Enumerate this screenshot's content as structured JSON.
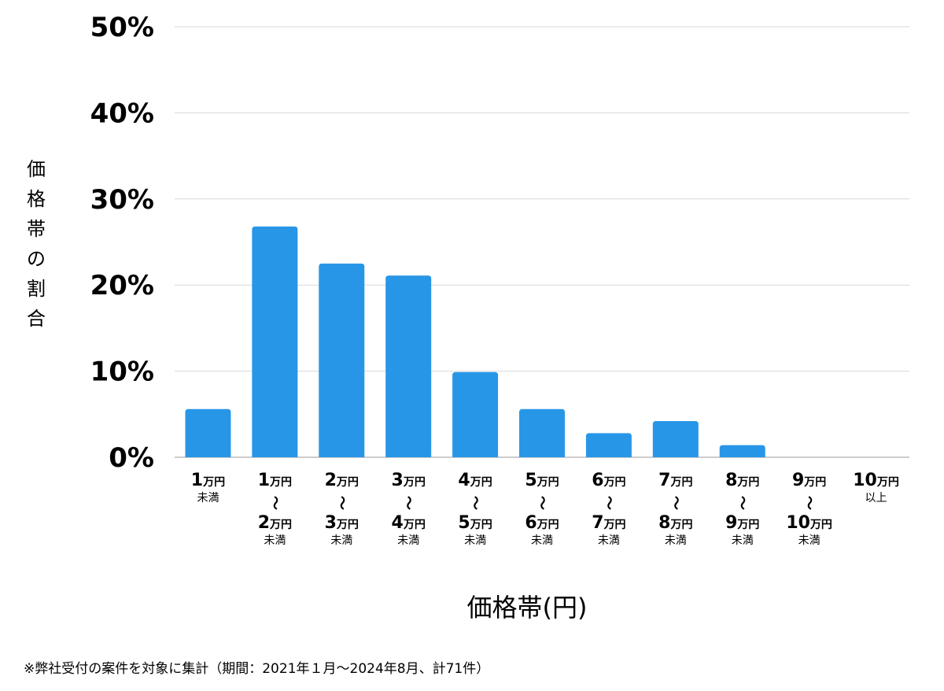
{
  "chart_data": {
    "type": "bar",
    "ylabel": "価格帯の割合",
    "xlabel": "価格帯(円)",
    "ylim": [
      0,
      50
    ],
    "yticks": [
      "0%",
      "10%",
      "20%",
      "30%",
      "40%",
      "50%"
    ],
    "grid": true,
    "bar_color": "#2896E6",
    "categories": [
      {
        "lines": [
          {
            "num": "1",
            "unit": "万円"
          }
        ],
        "suffix": "未満"
      },
      {
        "lines": [
          {
            "num": "1",
            "unit": "万円"
          },
          {
            "num": "2",
            "unit": "万円"
          }
        ],
        "suffix": "未満"
      },
      {
        "lines": [
          {
            "num": "2",
            "unit": "万円"
          },
          {
            "num": "3",
            "unit": "万円"
          }
        ],
        "suffix": "未満"
      },
      {
        "lines": [
          {
            "num": "3",
            "unit": "万円"
          },
          {
            "num": "4",
            "unit": "万円"
          }
        ],
        "suffix": "未満"
      },
      {
        "lines": [
          {
            "num": "4",
            "unit": "万円"
          },
          {
            "num": "5",
            "unit": "万円"
          }
        ],
        "suffix": "未満"
      },
      {
        "lines": [
          {
            "num": "5",
            "unit": "万円"
          },
          {
            "num": "6",
            "unit": "万円"
          }
        ],
        "suffix": "未満"
      },
      {
        "lines": [
          {
            "num": "6",
            "unit": "万円"
          },
          {
            "num": "7",
            "unit": "万円"
          }
        ],
        "suffix": "未満"
      },
      {
        "lines": [
          {
            "num": "7",
            "unit": "万円"
          },
          {
            "num": "8",
            "unit": "万円"
          }
        ],
        "suffix": "未満"
      },
      {
        "lines": [
          {
            "num": "8",
            "unit": "万円"
          },
          {
            "num": "9",
            "unit": "万円"
          }
        ],
        "suffix": "未満"
      },
      {
        "lines": [
          {
            "num": "9",
            "unit": "万円"
          },
          {
            "num": "10",
            "unit": "万円"
          }
        ],
        "suffix": "未満"
      },
      {
        "lines": [
          {
            "num": "10",
            "unit": "万円"
          }
        ],
        "suffix": "以上"
      }
    ],
    "values": [
      5.6,
      26.8,
      22.5,
      21.1,
      9.9,
      5.6,
      2.8,
      4.2,
      1.4,
      0,
      0
    ],
    "range_symbol": "〜"
  },
  "footnote": "※弊社受付の案件を対象に集計（期間：2021年１月〜2024年8月、計71件）"
}
